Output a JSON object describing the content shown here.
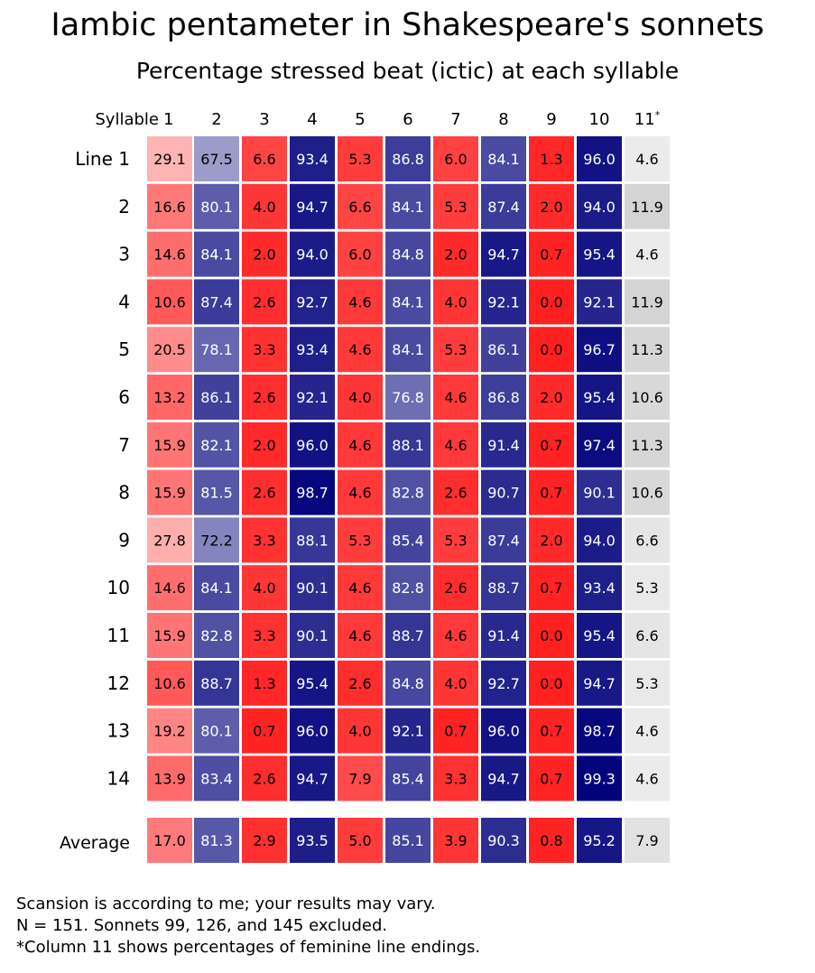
{
  "chart_data": {
    "type": "heatmap",
    "title": "Iambic pentameter in Shakespeare's sonnets",
    "subtitle": "Percentage stressed beat (ictic) at each syllable",
    "column_header_prefix": "Syllable",
    "columns": [
      "1",
      "2",
      "3",
      "4",
      "5",
      "6",
      "7",
      "8",
      "9",
      "10",
      "11"
    ],
    "column_markers": [
      "",
      "",
      "",
      "",
      "",
      "",
      "",
      "",
      "",
      "",
      "*"
    ],
    "row_labels": [
      "Line 1",
      "2",
      "3",
      "4",
      "5",
      "6",
      "7",
      "8",
      "9",
      "10",
      "11",
      "12",
      "13",
      "14"
    ],
    "values": [
      [
        29.1,
        67.5,
        6.6,
        93.4,
        5.3,
        86.8,
        6.0,
        84.1,
        1.3,
        96.0,
        4.6
      ],
      [
        16.6,
        80.1,
        4.0,
        94.7,
        6.6,
        84.1,
        5.3,
        87.4,
        2.0,
        94.0,
        11.9
      ],
      [
        14.6,
        84.1,
        2.0,
        94.0,
        6.0,
        84.8,
        2.0,
        94.7,
        0.7,
        95.4,
        4.6
      ],
      [
        10.6,
        87.4,
        2.6,
        92.7,
        4.6,
        84.1,
        4.0,
        92.1,
        0.0,
        92.1,
        11.9
      ],
      [
        20.5,
        78.1,
        3.3,
        93.4,
        4.6,
        84.1,
        5.3,
        86.1,
        0.0,
        96.7,
        11.3
      ],
      [
        13.2,
        86.1,
        2.6,
        92.1,
        4.0,
        76.8,
        4.6,
        86.8,
        2.0,
        95.4,
        10.6
      ],
      [
        15.9,
        82.1,
        2.0,
        96.0,
        4.6,
        88.1,
        4.6,
        91.4,
        0.7,
        97.4,
        11.3
      ],
      [
        15.9,
        81.5,
        2.6,
        98.7,
        4.6,
        82.8,
        2.6,
        90.7,
        0.7,
        90.1,
        10.6
      ],
      [
        27.8,
        72.2,
        3.3,
        88.1,
        5.3,
        85.4,
        5.3,
        87.4,
        2.0,
        94.0,
        6.6
      ],
      [
        14.6,
        84.1,
        4.0,
        90.1,
        4.6,
        82.8,
        2.6,
        88.7,
        0.7,
        93.4,
        5.3
      ],
      [
        15.9,
        82.8,
        3.3,
        90.1,
        4.6,
        88.7,
        4.6,
        91.4,
        0.0,
        95.4,
        6.6
      ],
      [
        10.6,
        88.7,
        1.3,
        95.4,
        2.6,
        84.8,
        4.0,
        92.7,
        0.0,
        94.7,
        5.3
      ],
      [
        19.2,
        80.1,
        0.7,
        96.0,
        4.0,
        92.1,
        0.7,
        96.0,
        0.7,
        98.7,
        4.6
      ],
      [
        13.9,
        83.4,
        2.6,
        94.7,
        7.9,
        85.4,
        3.3,
        94.7,
        0.7,
        99.3,
        4.6
      ]
    ],
    "average_label": "Average",
    "average": [
      17.0,
      81.3,
      2.9,
      93.5,
      5.0,
      85.1,
      3.9,
      90.3,
      0.8,
      95.2,
      7.9
    ],
    "colors": {
      "low_extreme": "#ff2020",
      "neutral": "#ffffff",
      "high_extreme": "#00007a",
      "gray_column": "#d4d4d4",
      "light_text": "#ffffff",
      "dark_text": "#000000"
    }
  },
  "footnotes": [
    "Scansion is according to me; your results may vary.",
    "N = 151. Sonnets 99, 126, and 145 excluded.",
    "*Column 11 shows percentages of feminine line endings."
  ]
}
